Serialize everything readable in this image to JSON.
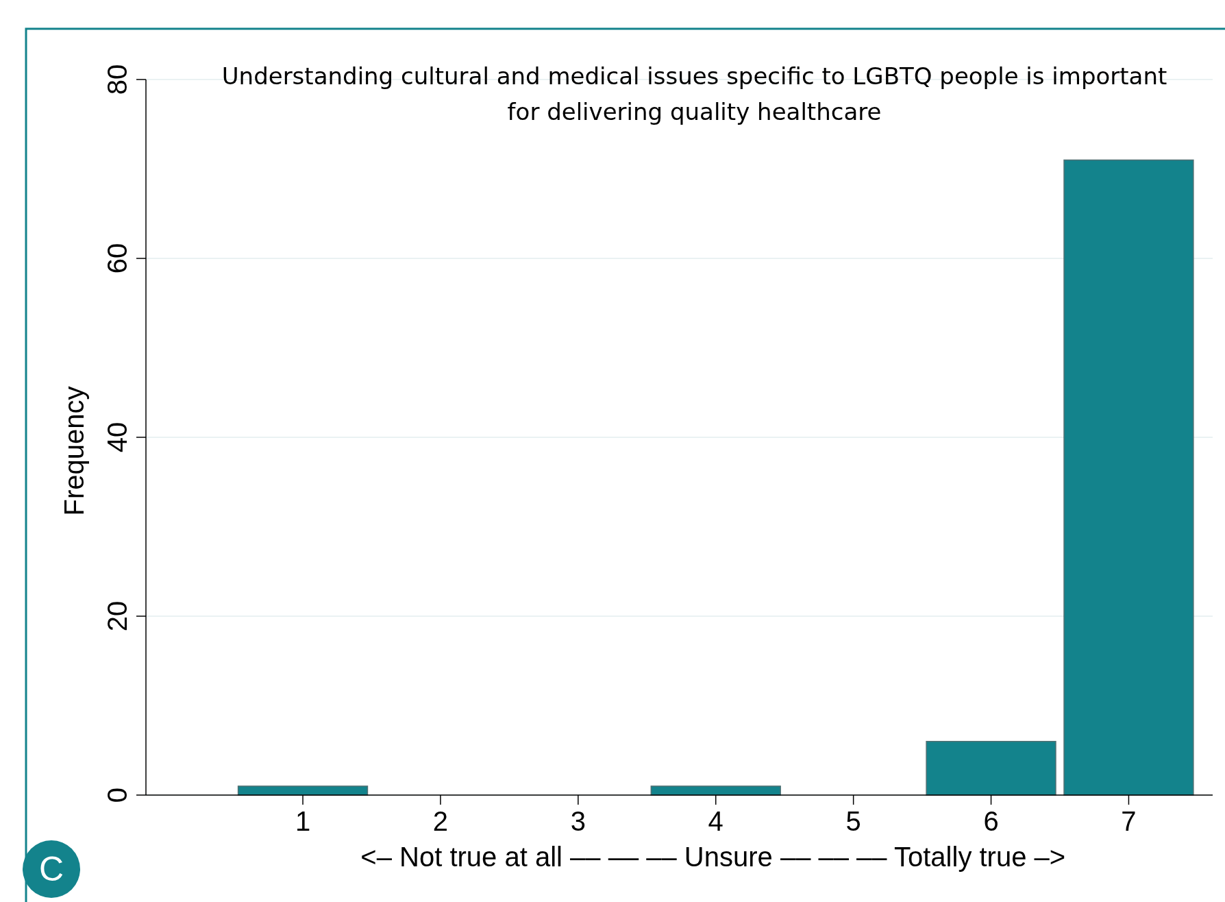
{
  "chart_data": {
    "type": "bar",
    "title": "Understanding cultural and medical issues specific to LGBTQ people is important\nfor delivering quality healthcare",
    "xlabel": "<– Not true at all –– –– –– Unsure –– –– –– Totally true –>",
    "ylabel": "Frequency",
    "x": [
      1,
      2,
      3,
      4,
      5,
      6,
      7
    ],
    "values": [
      1,
      0,
      0,
      1,
      0,
      6,
      71
    ],
    "color": "#13838c",
    "xlim": [
      -0.14,
      7.61
    ],
    "xticks": [
      1,
      2,
      3,
      4,
      5,
      6,
      7
    ],
    "ylim": [
      0,
      80
    ],
    "yticks": [
      0,
      20,
      40,
      60,
      80
    ],
    "grid": "y",
    "annotations": [
      "C"
    ]
  }
}
